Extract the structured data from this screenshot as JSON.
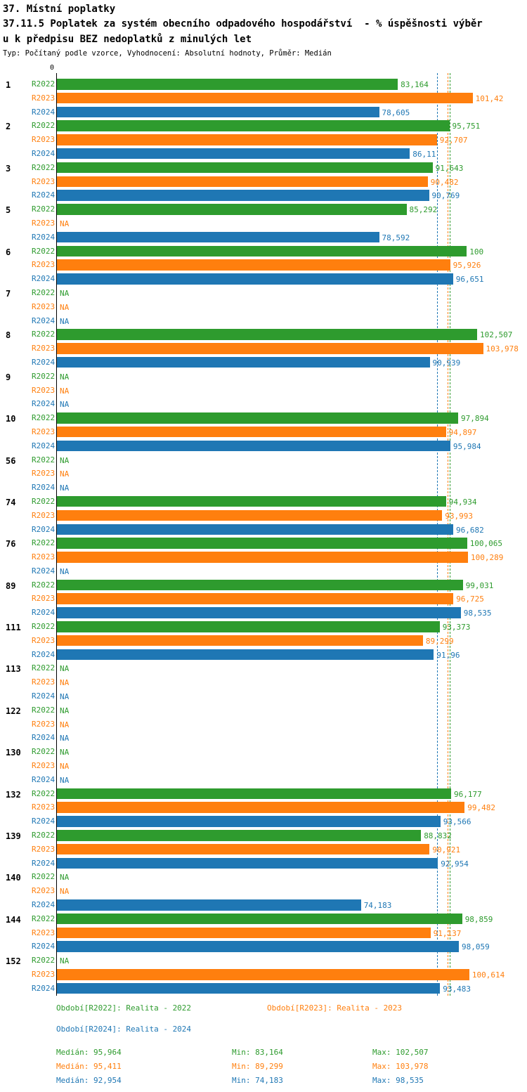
{
  "header": {
    "title1": "37. Místní poplatky",
    "title2": "37.11.5 Poplatek za systém obecního odpadového hospodářství  - % úspěšnosti výběr",
    "title3": "u k předpisu BEZ nedoplatků z minulých let",
    "subtitle": "Typ: Počítaný podle vzorce, Vyhodnocení: Absolutní hodnoty, Průměr: Medián"
  },
  "axis": {
    "zero_label": "0"
  },
  "chart_data": {
    "type": "bar",
    "orientation": "horizontal",
    "xmax": 108,
    "grid": false,
    "series": [
      {
        "key": "R2022",
        "color": "#2e9b2e",
        "legend": "Období[R2022]: Realita - 2022",
        "median": "95,964"
      },
      {
        "key": "R2023",
        "color": "#ff7f0e",
        "legend": "Období[R2023]: Realita - 2023",
        "median": "95,411"
      },
      {
        "key": "R2024",
        "color": "#1f77b4",
        "legend": "Období[R2024]: Realita - 2024",
        "median": "92,954"
      }
    ],
    "groups": [
      {
        "id": "1",
        "values": [
          "83,164",
          "101,42",
          "78,605"
        ]
      },
      {
        "id": "2",
        "values": [
          "95,751",
          "92,707",
          "86,11"
        ]
      },
      {
        "id": "3",
        "values": [
          "91,643",
          "90,482",
          "90,769"
        ]
      },
      {
        "id": "5",
        "values": [
          "85,292",
          "NA",
          "78,592"
        ]
      },
      {
        "id": "6",
        "values": [
          "100",
          "95,926",
          "96,651"
        ]
      },
      {
        "id": "7",
        "values": [
          "NA",
          "NA",
          "NA"
        ]
      },
      {
        "id": "8",
        "values": [
          "102,507",
          "103,978",
          "90,939"
        ]
      },
      {
        "id": "9",
        "values": [
          "NA",
          "NA",
          "NA"
        ]
      },
      {
        "id": "10",
        "values": [
          "97,894",
          "94,897",
          "95,984"
        ]
      },
      {
        "id": "56",
        "values": [
          "NA",
          "NA",
          "NA"
        ]
      },
      {
        "id": "74",
        "values": [
          "94,934",
          "93,993",
          "96,682"
        ]
      },
      {
        "id": "76",
        "values": [
          "100,065",
          "100,289",
          "NA"
        ]
      },
      {
        "id": "89",
        "values": [
          "99,031",
          "96,725",
          "98,535"
        ]
      },
      {
        "id": "111",
        "values": [
          "93,373",
          "89,299",
          "91,96"
        ]
      },
      {
        "id": "113",
        "values": [
          "NA",
          "NA",
          "NA"
        ]
      },
      {
        "id": "122",
        "values": [
          "NA",
          "NA",
          "NA"
        ]
      },
      {
        "id": "130",
        "values": [
          "NA",
          "NA",
          "NA"
        ]
      },
      {
        "id": "132",
        "values": [
          "96,177",
          "99,482",
          "93,566"
        ]
      },
      {
        "id": "139",
        "values": [
          "88,832",
          "90,921",
          "92,954"
        ]
      },
      {
        "id": "140",
        "values": [
          "NA",
          "NA",
          "74,183"
        ]
      },
      {
        "id": "144",
        "values": [
          "98,859",
          "91,137",
          "98,059"
        ]
      },
      {
        "id": "152",
        "values": [
          "NA",
          "100,614",
          "93,483"
        ]
      }
    ]
  },
  "stats": [
    {
      "median": "Medián: 95,964",
      "min": "Min: 83,164",
      "max": "Max: 102,507"
    },
    {
      "median": "Medián: 95,411",
      "min": "Min: 89,299",
      "max": "Max: 103,978"
    },
    {
      "median": "Medián: 92,954",
      "min": "Min: 74,183",
      "max": "Max: 98,535"
    }
  ]
}
